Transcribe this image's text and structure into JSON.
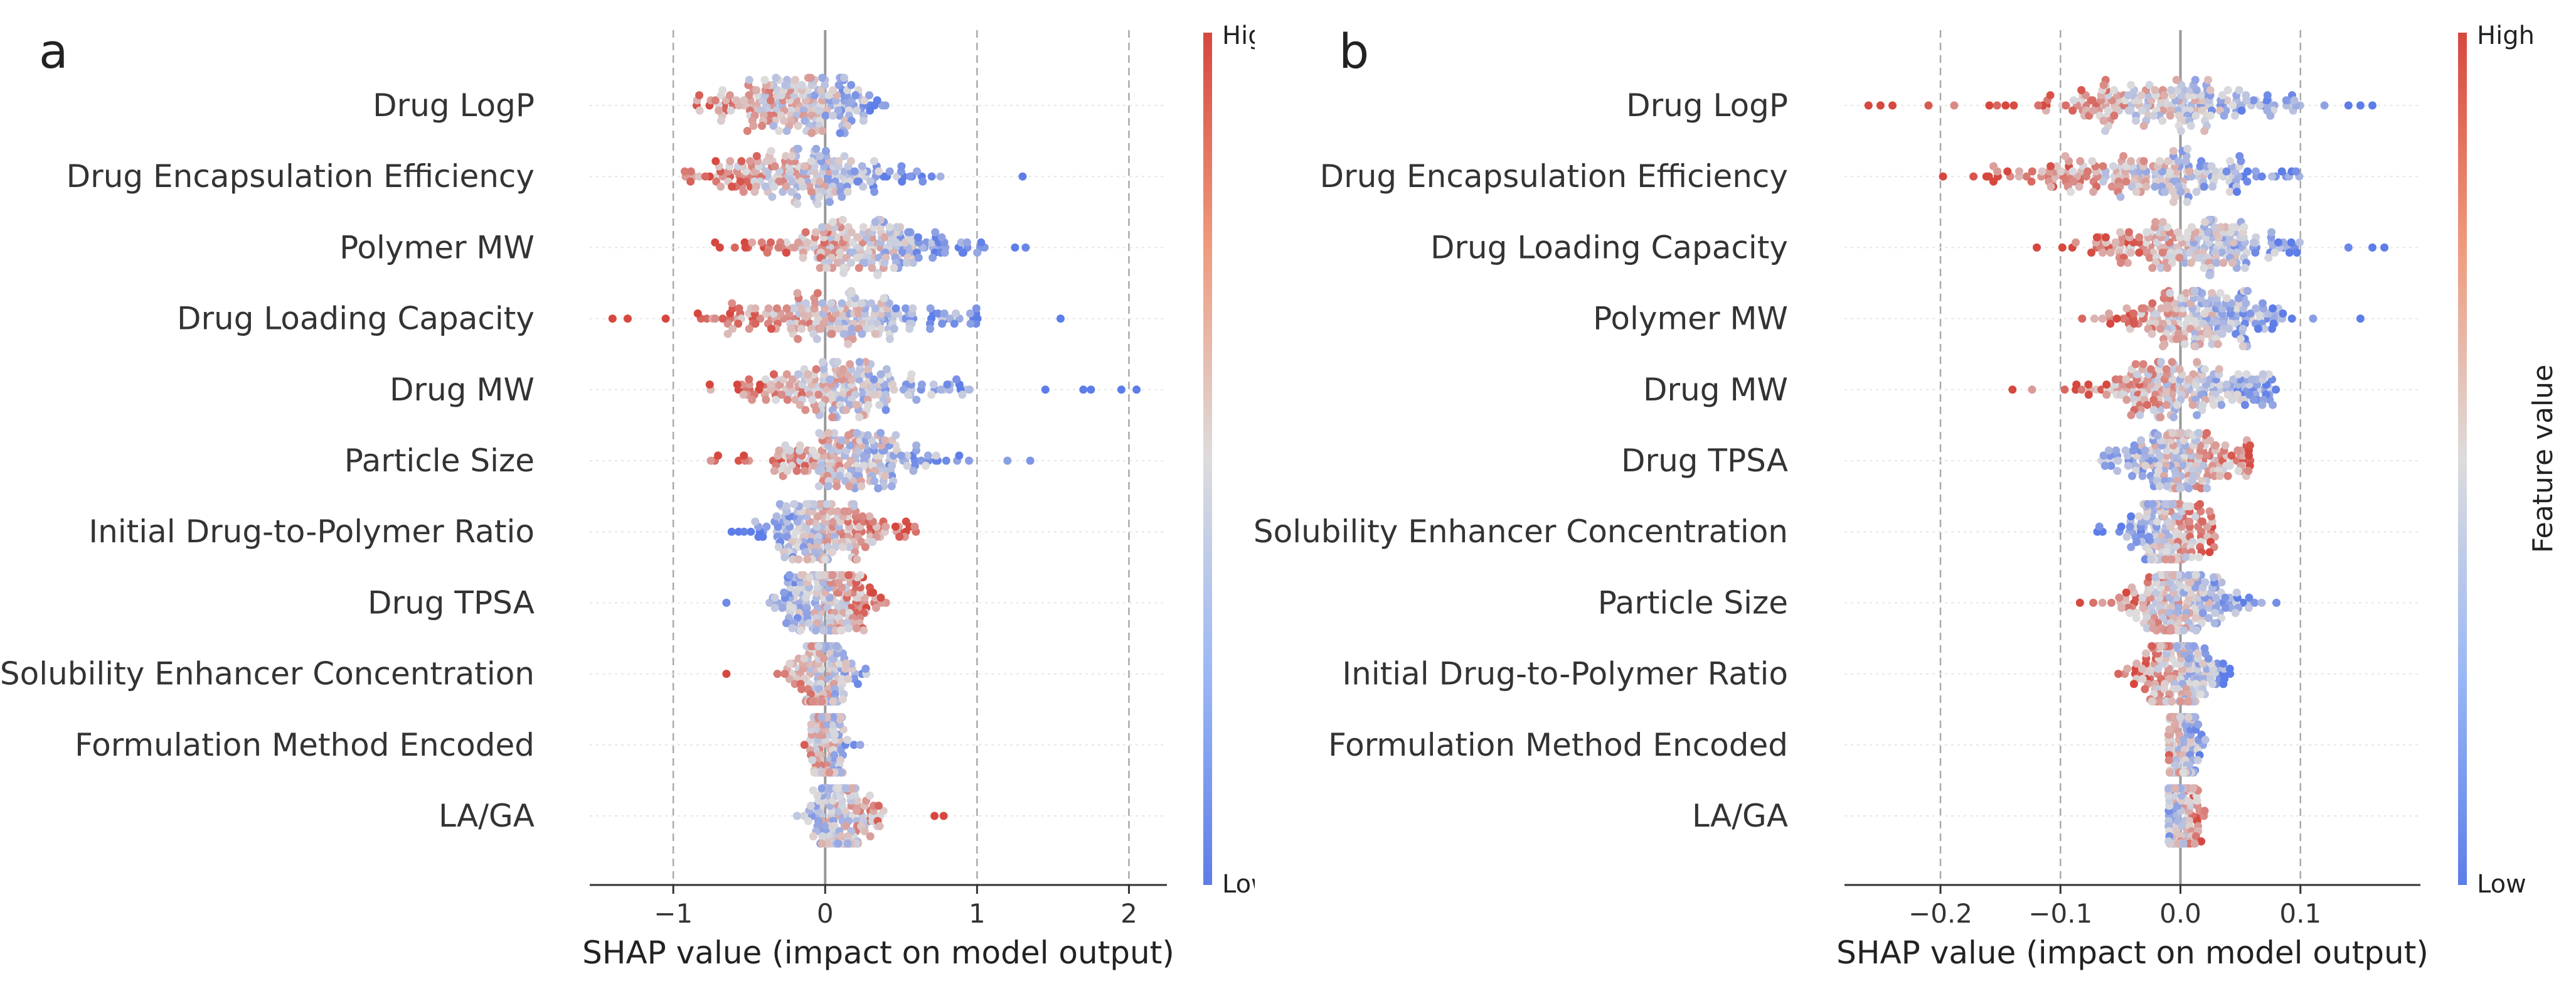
{
  "chart_data": [
    {
      "panel": "a",
      "type": "scatter",
      "subtype": "shap-beeswarm",
      "xlabel": "SHAP value (impact on model output)",
      "xlim": [
        -1.55,
        2.25
      ],
      "xticks": [
        -1,
        0,
        1,
        2
      ],
      "xtick_labels": [
        "−1",
        "0",
        "1",
        "2"
      ],
      "grid_x": [
        -1,
        0,
        1,
        2
      ],
      "zero_line": 0,
      "colorbar": {
        "high_label": "High",
        "low_label": "Low",
        "title": ""
      },
      "features": [
        {
          "name": "Drug LogP",
          "min": -1.15,
          "max": 0.95,
          "spread": 0.28,
          "skew": -0.2,
          "hi_side": -1,
          "outliers": []
        },
        {
          "name": "Drug Encapsulation Efficiency",
          "min": -1.1,
          "max": 1.0,
          "spread": 0.35,
          "skew": -0.15,
          "hi_side": -1,
          "outliers": [
            1.3
          ]
        },
        {
          "name": "Polymer MW",
          "min": -0.8,
          "max": 1.1,
          "spread": 0.38,
          "skew": 0.25,
          "hi_side": -1,
          "outliers": [
            1.25,
            1.32
          ]
        },
        {
          "name": "Drug Loading Capacity",
          "min": -0.95,
          "max": 1.3,
          "spread": 0.4,
          "skew": 0.1,
          "hi_side": -1,
          "outliers": [
            -1.4,
            -1.3,
            -1.05,
            1.55
          ]
        },
        {
          "name": "Drug MW",
          "min": -0.85,
          "max": 1.35,
          "spread": 0.34,
          "skew": 0.1,
          "hi_side": -1,
          "outliers": [
            1.45,
            1.7,
            1.75,
            1.95,
            2.05
          ]
        },
        {
          "name": "Particle Size",
          "min": -0.9,
          "max": 0.95,
          "spread": 0.3,
          "skew": 0.15,
          "hi_side": -1,
          "outliers": [
            1.2,
            1.35
          ]
        },
        {
          "name": "Initial Drug-to-Polymer Ratio",
          "min": -0.8,
          "max": 0.68,
          "spread": 0.24,
          "skew": 0.0,
          "hi_side": 1,
          "outliers": []
        },
        {
          "name": "Drug TPSA",
          "min": -0.6,
          "max": 0.6,
          "spread": 0.18,
          "skew": 0.0,
          "hi_side": 1,
          "outliers": [
            -0.65
          ]
        },
        {
          "name": "Solubility Enhancer Concentration",
          "min": -0.55,
          "max": 0.35,
          "spread": 0.12,
          "skew": 0.0,
          "hi_side": -1,
          "outliers": [
            -0.65
          ]
        },
        {
          "name": "Formulation Method Encoded",
          "min": -0.3,
          "max": 0.42,
          "spread": 0.06,
          "skew": 0.02,
          "hi_side": -1,
          "outliers": []
        },
        {
          "name": "LA/GA",
          "min": -0.25,
          "max": 0.78,
          "spread": 0.1,
          "skew": 0.1,
          "hi_side": 1,
          "outliers": [
            0.72,
            0.78
          ]
        }
      ]
    },
    {
      "panel": "b",
      "type": "scatter",
      "subtype": "shap-beeswarm",
      "xlabel": "SHAP value (impact on model output)",
      "xlim": [
        -0.28,
        0.2
      ],
      "xticks": [
        -0.2,
        -0.1,
        0.0,
        0.1
      ],
      "xtick_labels": [
        "−0.2",
        "−0.1",
        "0.0",
        "0.1"
      ],
      "grid_x": [
        -0.2,
        -0.1,
        0.0,
        0.1
      ],
      "zero_line": 0,
      "colorbar": {
        "high_label": "High",
        "low_label": "Low",
        "title": "Feature value"
      },
      "features": [
        {
          "name": "Drug LogP",
          "min": -0.2,
          "max": 0.1,
          "spread": 0.055,
          "skew": -0.02,
          "hi_side": -1,
          "outliers": [
            -0.26,
            -0.25,
            -0.24,
            -0.21,
            0.12,
            0.14,
            0.15,
            0.16
          ]
        },
        {
          "name": "Drug Encapsulation Efficiency",
          "min": -0.2,
          "max": 0.1,
          "spread": 0.06,
          "skew": -0.03,
          "hi_side": -1,
          "outliers": []
        },
        {
          "name": "Drug Loading Capacity",
          "min": -0.12,
          "max": 0.11,
          "spread": 0.05,
          "skew": 0.01,
          "hi_side": -1,
          "outliers": [
            0.14,
            0.16,
            0.17
          ]
        },
        {
          "name": "Polymer MW",
          "min": -0.1,
          "max": 0.12,
          "spread": 0.04,
          "skew": 0.01,
          "hi_side": -1,
          "outliers": [
            0.15
          ]
        },
        {
          "name": "Drug MW",
          "min": -0.14,
          "max": 0.08,
          "spread": 0.04,
          "skew": 0.0,
          "hi_side": -1,
          "outliers": [
            -0.14
          ]
        },
        {
          "name": "Drug TPSA",
          "min": -0.12,
          "max": 0.06,
          "spread": 0.03,
          "skew": 0.0,
          "hi_side": 1,
          "outliers": []
        },
        {
          "name": "Solubility Enhancer Concentration",
          "min": -0.07,
          "max": 0.03,
          "spread": 0.02,
          "skew": -0.01,
          "hi_side": 1,
          "outliers": []
        },
        {
          "name": "Particle Size",
          "min": -0.09,
          "max": 0.07,
          "spread": 0.025,
          "skew": 0.0,
          "hi_side": -1,
          "outliers": [
            0.08
          ]
        },
        {
          "name": "Initial Drug-to-Polymer Ratio",
          "min": -0.06,
          "max": 0.06,
          "spread": 0.02,
          "skew": 0.0,
          "hi_side": -1,
          "outliers": []
        },
        {
          "name": "Formulation Method Encoded",
          "min": -0.01,
          "max": 0.03,
          "spread": 0.008,
          "skew": 0.0,
          "hi_side": -1,
          "outliers": []
        },
        {
          "name": "LA/GA",
          "min": -0.01,
          "max": 0.03,
          "spread": 0.008,
          "skew": 0.0,
          "hi_side": 1,
          "outliers": []
        }
      ]
    }
  ],
  "colors": {
    "high": "#d6483f",
    "mid": "#dddcdc",
    "low": "#5d7de8",
    "zero_line": "#999999",
    "grid": "#aaaaaa",
    "row_grid": "#e6e6e6",
    "axis": "#333333"
  }
}
